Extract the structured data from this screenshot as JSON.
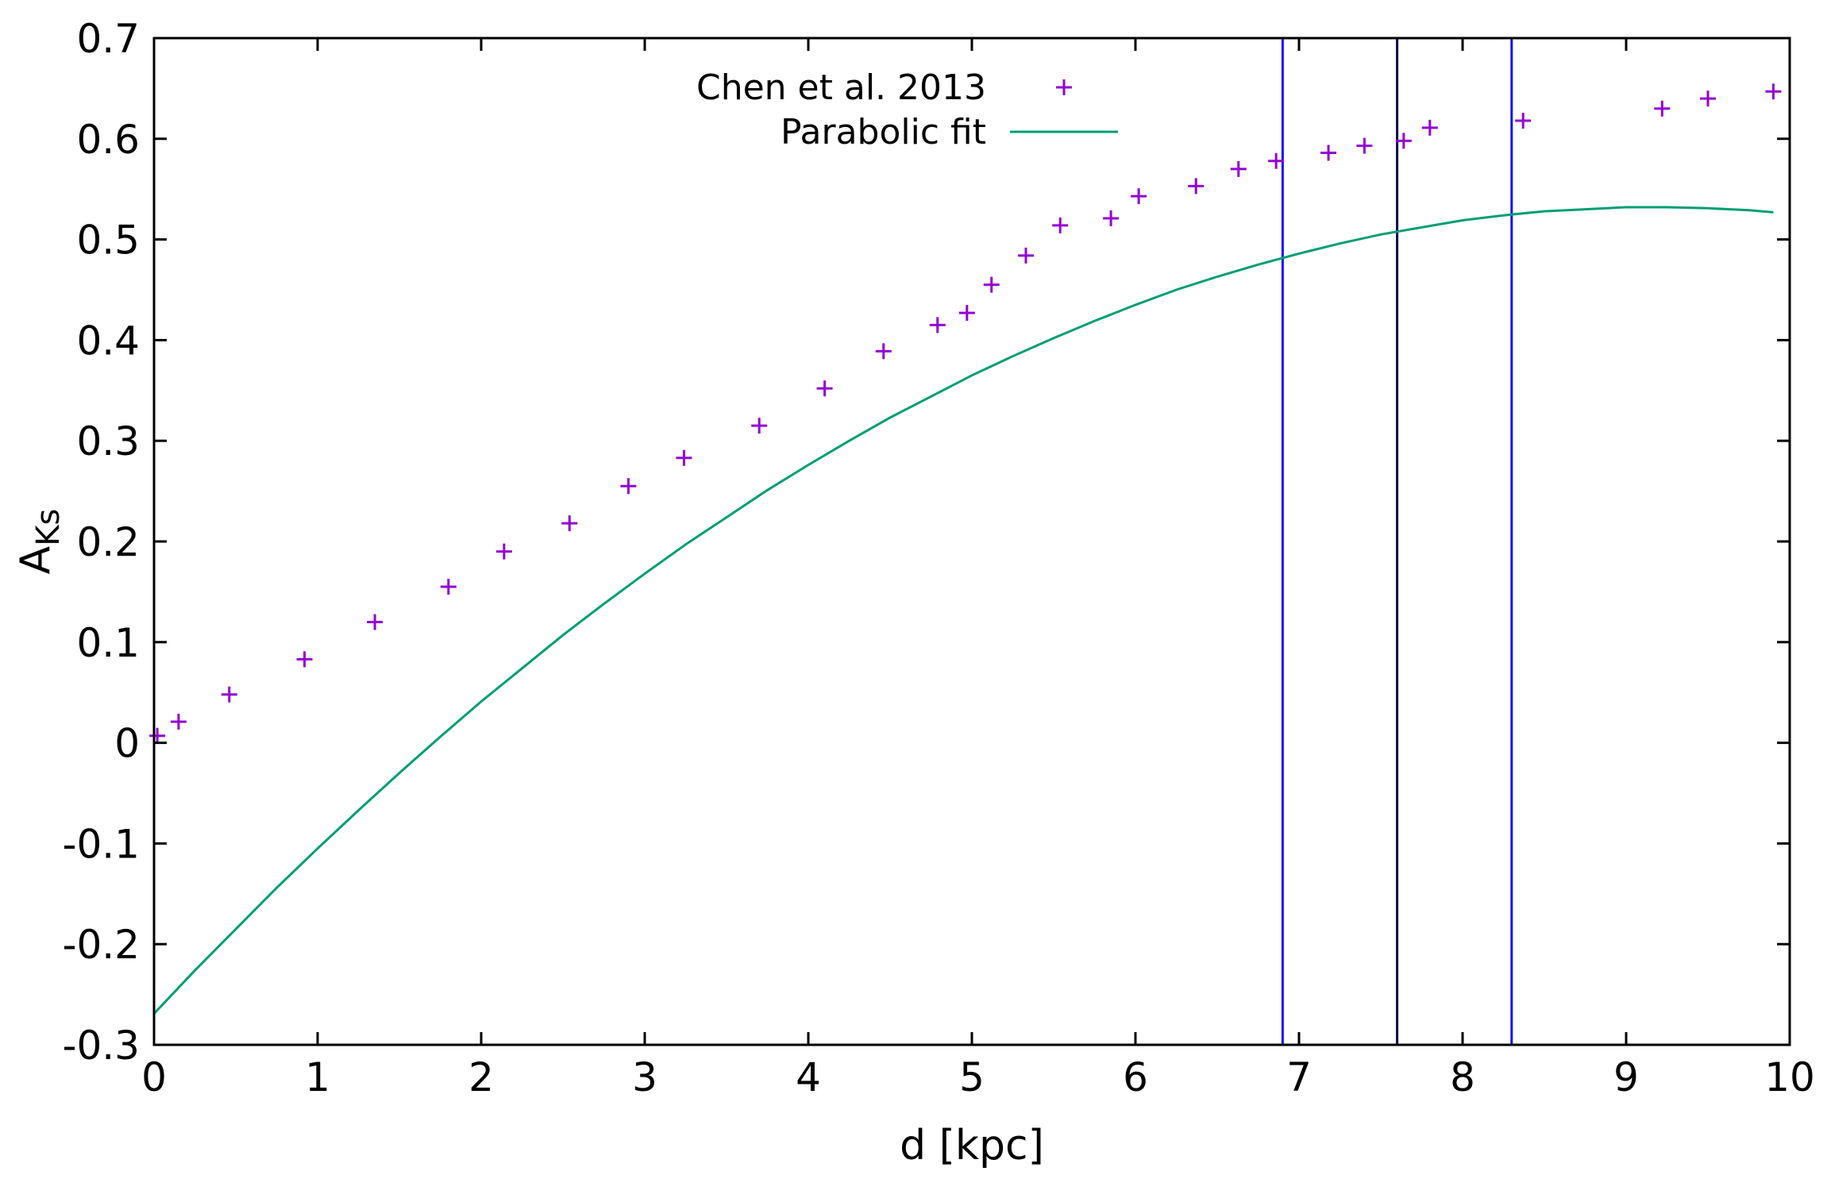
{
  "chart_data": {
    "type": "scatter",
    "title": "",
    "xlabel": "d [kpc]",
    "ylabel": {
      "main": "A",
      "subscript": "Ks"
    },
    "xlim": [
      0,
      10
    ],
    "ylim": [
      -0.3,
      0.7
    ],
    "x_ticks": [
      0,
      1,
      2,
      3,
      4,
      5,
      6,
      7,
      8,
      9,
      10
    ],
    "x_tick_labels": [
      "0",
      "1",
      "2",
      "3",
      "4",
      "5",
      "6",
      "7",
      "8",
      "9",
      "10"
    ],
    "y_ticks": [
      -0.3,
      -0.2,
      -0.1,
      0,
      0.1,
      0.2,
      0.3,
      0.4,
      0.5,
      0.6,
      0.7
    ],
    "y_tick_labels": [
      "-0.3",
      "-0.2",
      "-0.1",
      "0",
      "0.1",
      "0.2",
      "0.3",
      "0.4",
      "0.5",
      "0.6",
      "0.7"
    ],
    "grid": false,
    "legend_position": "top-center",
    "series": [
      {
        "name": "Chen et al. 2013",
        "type": "scatter",
        "marker": "plus",
        "color": "#9400d3",
        "x": [
          0.02,
          0.15,
          0.46,
          0.92,
          1.35,
          1.8,
          2.14,
          2.54,
          2.9,
          3.24,
          3.7,
          4.1,
          4.46,
          4.79,
          4.97,
          5.12,
          5.33,
          5.54,
          5.85,
          6.02,
          6.37,
          6.63,
          6.86,
          7.18,
          7.4,
          7.64,
          7.8,
          8.37,
          9.22,
          9.5,
          9.9
        ],
        "y": [
          0.007,
          0.021,
          0.048,
          0.083,
          0.12,
          0.155,
          0.19,
          0.218,
          0.255,
          0.283,
          0.315,
          0.352,
          0.389,
          0.415,
          0.427,
          0.455,
          0.484,
          0.514,
          0.521,
          0.543,
          0.553,
          0.57,
          0.578,
          0.586,
          0.593,
          0.598,
          0.611,
          0.618,
          0.63,
          0.64,
          0.647
        ]
      },
      {
        "name": "Parabolic fit",
        "type": "line",
        "color": "#009e73",
        "x": [
          0.0,
          0.25,
          0.5,
          0.75,
          1.0,
          1.25,
          1.5,
          1.75,
          2.0,
          2.25,
          2.5,
          2.75,
          3.0,
          3.25,
          3.5,
          3.75,
          4.0,
          4.25,
          4.5,
          4.75,
          5.0,
          5.25,
          5.5,
          5.75,
          6.0,
          6.25,
          6.5,
          6.75,
          7.0,
          7.25,
          7.5,
          7.75,
          8.0,
          8.25,
          8.5,
          8.75,
          9.0,
          9.25,
          9.5,
          9.75,
          9.9
        ],
        "y": [
          -0.269,
          -0.226,
          -0.185,
          -0.144,
          -0.105,
          -0.067,
          -0.03,
          0.006,
          0.041,
          0.074,
          0.107,
          0.138,
          0.168,
          0.197,
          0.224,
          0.251,
          0.276,
          0.3,
          0.323,
          0.344,
          0.365,
          0.384,
          0.402,
          0.419,
          0.435,
          0.45,
          0.463,
          0.475,
          0.486,
          0.496,
          0.505,
          0.512,
          0.519,
          0.524,
          0.528,
          0.53,
          0.532,
          0.532,
          0.531,
          0.529,
          0.527
        ]
      }
    ],
    "vertical_lines": [
      {
        "x": 6.9,
        "color": "#1010ff"
      },
      {
        "x": 7.6,
        "color": "#000050"
      },
      {
        "x": 8.3,
        "color": "#1010ff"
      }
    ]
  }
}
